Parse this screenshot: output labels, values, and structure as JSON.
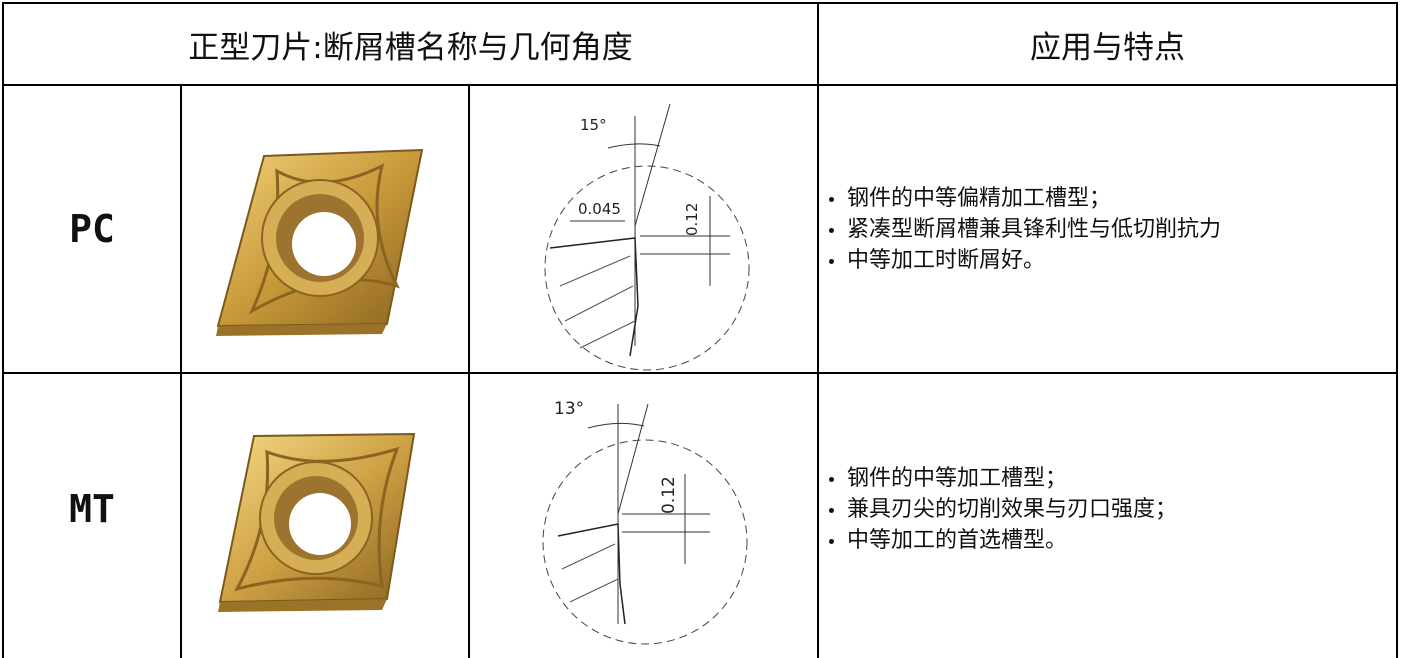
{
  "table": {
    "header": [
      "正型刀片:断屑槽名称与几何角度",
      "应用与特点"
    ],
    "rows": [
      {
        "name": "PC",
        "diagram_labels": [
          "15°",
          "0.045",
          "0.12"
        ],
        "features": [
          "钢件的中等偏精加工槽型；",
          "紧凑型断屑槽兼具锋利性与低切削抗力",
          "中等加工时断屑好。"
        ]
      },
      {
        "name": "MT",
        "diagram_labels": [
          "13°",
          "0.12"
        ],
        "features": [
          "钢件的中等加工槽型；",
          "兼具刃尖的切削效果与刃口强度；",
          "中等加工的首选槽型。"
        ]
      }
    ]
  }
}
